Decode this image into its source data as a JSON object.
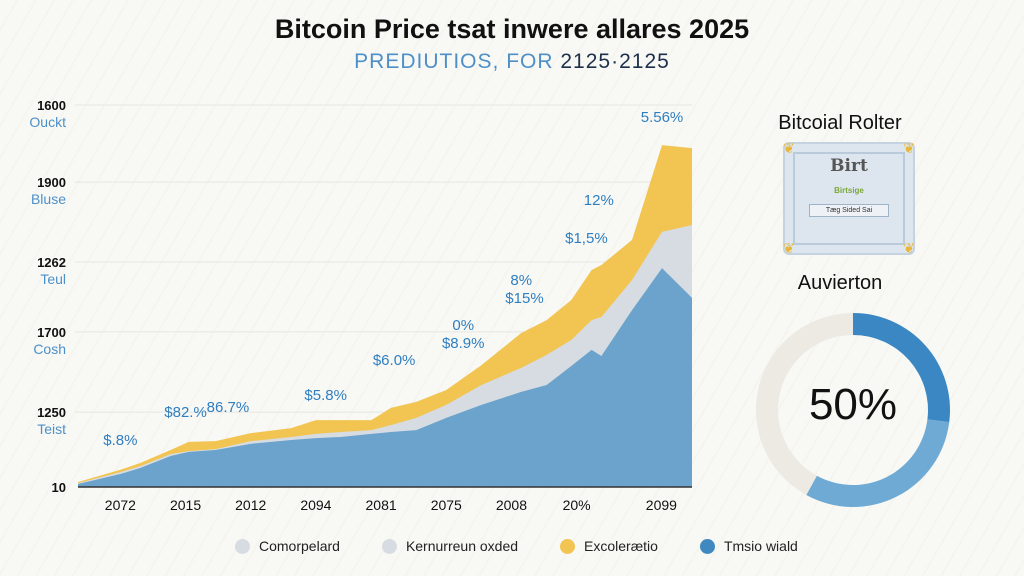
{
  "chart_data": {
    "type": "area",
    "title": "Bitcoin Price tsat inwere allares 2025",
    "subtitle_part1": "PREDIUTIOS, FOR",
    "subtitle_part2": "2125·2125",
    "stacked": true,
    "grid": true,
    "legend_position": "bottom",
    "x_ticks": [
      "2072",
      "2015",
      "2012",
      "2094",
      "2081",
      "2075",
      "2008",
      "20%",
      "2099"
    ],
    "y_ticks": [
      {
        "value": 0,
        "label": "10",
        "sub": ""
      },
      {
        "value": 19.6,
        "label": "1250",
        "sub": "Teist"
      },
      {
        "value": 40.6,
        "label": "1700",
        "sub": "Cosh"
      },
      {
        "value": 58.9,
        "label": "1262",
        "sub": "Teul"
      },
      {
        "value": 79.8,
        "label": "1900",
        "sub": "Bluse"
      },
      {
        "value": 100,
        "label": "1600",
        "sub": "Ouckt"
      }
    ],
    "ylim": [
      0,
      100
    ],
    "xlim": [
      -0.65,
      8.77
    ],
    "x": [
      -0.65,
      0,
      0.31,
      0.77,
      1.05,
      1.46,
      2,
      2.62,
      3,
      3.38,
      3.85,
      4.15,
      4.54,
      5,
      5.54,
      6.15,
      6.54,
      6.92,
      7.23,
      7.38,
      7.85,
      8.31,
      8.77
    ],
    "series": [
      {
        "name": "Tmsio wiald",
        "color": "#6ba3cc",
        "values": [
          0.8,
          3.4,
          5.0,
          8.1,
          9.2,
          9.7,
          11.3,
          12.3,
          12.8,
          13.1,
          13.9,
          14.4,
          14.9,
          18.1,
          21.5,
          24.9,
          26.7,
          31.7,
          35.9,
          34.3,
          46.3,
          57.3,
          49.5
        ]
      },
      {
        "name": "Kernurreun oxded",
        "color": "#d6dce1",
        "values": [
          1.0,
          3.9,
          5.5,
          8.6,
          9.4,
          9.9,
          12.0,
          13.1,
          13.9,
          14.4,
          14.9,
          16.2,
          18.1,
          21.5,
          26.7,
          31.2,
          34.6,
          38.5,
          43.7,
          44.5,
          54.2,
          66.8,
          68.6
        ]
      },
      {
        "name": "Excolerætio",
        "color": "#f2c552",
        "values": [
          1.3,
          4.5,
          6.3,
          9.7,
          11.8,
          12.0,
          14.1,
          15.4,
          17.5,
          17.5,
          17.5,
          20.7,
          22.3,
          25.4,
          31.9,
          40.3,
          43.7,
          49.0,
          56.8,
          58.1,
          64.7,
          89.5,
          88.7
        ]
      }
    ],
    "annotations": [
      {
        "x": 0,
        "y": 11.0,
        "text": "$.8%"
      },
      {
        "x": 1.0,
        "y": 18.3,
        "text": "$82.%"
      },
      {
        "x": 1.65,
        "y": 19.6,
        "text": "86.7%"
      },
      {
        "x": 3.15,
        "y": 22.8,
        "text": "$5.8%"
      },
      {
        "x": 4.2,
        "y": 31.9,
        "text": "$6.0%"
      },
      {
        "x": 5.26,
        "y": 41.1,
        "text": "0%"
      },
      {
        "x": 5.26,
        "y": 36.4,
        "text": "$8.9%"
      },
      {
        "x": 6.15,
        "y": 52.9,
        "text": "8%"
      },
      {
        "x": 6.2,
        "y": 48.2,
        "text": "$15%"
      },
      {
        "x": 7.15,
        "y": 63.9,
        "text": "$1,5%"
      },
      {
        "x": 7.34,
        "y": 73.8,
        "text": "12%"
      },
      {
        "x": 8.31,
        "y": 95.5,
        "text": "5.56%"
      }
    ],
    "legend": [
      {
        "label": "Comorpelard",
        "color": "#d6dce1"
      },
      {
        "label": "Kernurreun oxded",
        "color": "#d6dce1"
      },
      {
        "label": "Excolerætio",
        "color": "#f2c552"
      },
      {
        "label": "Tmsio wiald",
        "color": "#3f88c0"
      }
    ]
  },
  "side": {
    "certificate_title": "Bitcoial Rolter",
    "certificate_heading": "Birt",
    "certificate_green": "Birtsige",
    "certificate_small": "Tæg Sided Sai",
    "donut_title": "Auvierton",
    "donut_value": "50%",
    "donut_segments": [
      {
        "fraction": 0.27,
        "color": "#3a87c3"
      },
      {
        "fraction": 0.31,
        "color": "#6eaad4"
      },
      {
        "fraction": 0.42,
        "color": "#eceae2"
      }
    ]
  }
}
